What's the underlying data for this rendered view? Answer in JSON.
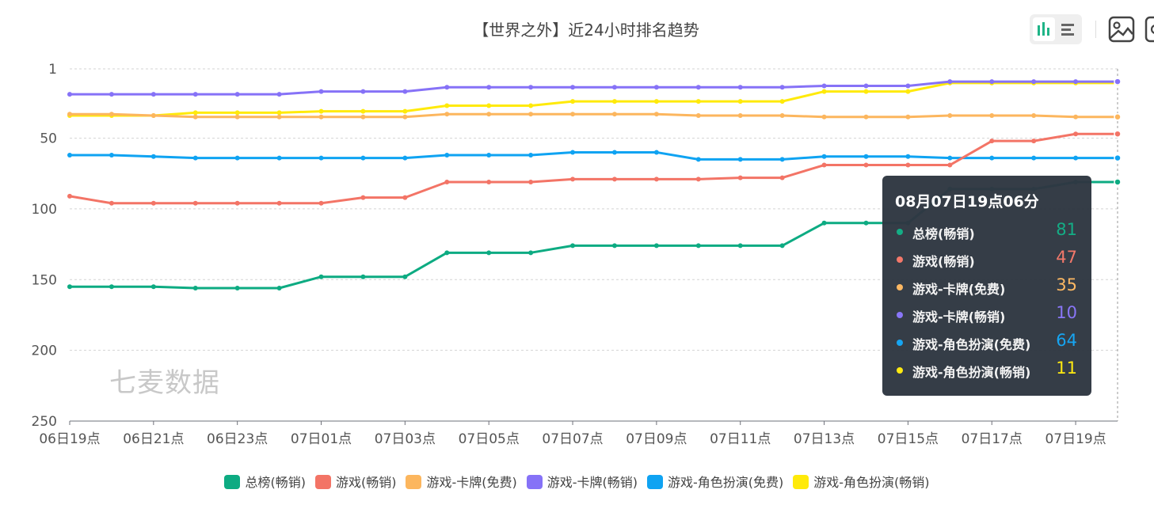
{
  "title": "【世界之外】近24小时排名趋势",
  "watermark": "七麦数据",
  "toolbar": {
    "buttons": [
      {
        "name": "bar-chart-icon",
        "active": true
      },
      {
        "name": "list-icon",
        "active": false
      },
      {
        "name": "image-icon",
        "active": false
      }
    ]
  },
  "colors": {
    "grid": "#d3d3d3",
    "axis": "#6e7079",
    "tooltip_bg": "#2f3742"
  },
  "chart_data": {
    "type": "line",
    "title": "【世界之外】近24小时排名趋势",
    "x_ticks": [
      "06日19点",
      "06日21点",
      "06日23点",
      "07日01点",
      "07日03点",
      "07日05点",
      "07日07点",
      "07日09点",
      "07日11点",
      "07日13点",
      "07日15点",
      "07日17点",
      "07日19点"
    ],
    "y_ticks": [
      "1",
      "50",
      "100",
      "150",
      "200",
      "250"
    ],
    "ylim": [
      1,
      250
    ],
    "y_inverted": true,
    "grid": true,
    "legend_position": "bottom",
    "series": [
      {
        "name": "总榜(畅销)",
        "color": "#0dab82",
        "values": [
          155,
          155,
          155,
          156,
          156,
          156,
          148,
          148,
          148,
          131,
          131,
          131,
          126,
          126,
          126,
          126,
          126,
          126,
          110,
          110,
          110,
          86,
          86,
          86,
          81,
          81
        ]
      },
      {
        "name": "游戏(畅销)",
        "color": "#f37466",
        "values": [
          91,
          96,
          96,
          96,
          96,
          96,
          96,
          92,
          92,
          81,
          81,
          81,
          79,
          79,
          79,
          79,
          78,
          78,
          69,
          69,
          69,
          69,
          52,
          52,
          47,
          47
        ]
      },
      {
        "name": "游戏-卡牌(免费)",
        "color": "#fcb65e",
        "values": [
          33,
          33,
          34,
          35,
          35,
          35,
          35,
          35,
          35,
          33,
          33,
          33,
          33,
          33,
          33,
          34,
          34,
          34,
          35,
          35,
          35,
          34,
          34,
          34,
          35,
          35
        ]
      },
      {
        "name": "游戏-卡牌(畅销)",
        "color": "#8672f7",
        "values": [
          19,
          19,
          19,
          19,
          19,
          19,
          17,
          17,
          17,
          14,
          14,
          14,
          14,
          14,
          14,
          14,
          14,
          14,
          13,
          13,
          13,
          10,
          10,
          10,
          10,
          10
        ]
      },
      {
        "name": "游戏-角色扮演(免费)",
        "color": "#0fa3f2",
        "values": [
          62,
          62,
          63,
          64,
          64,
          64,
          64,
          64,
          64,
          62,
          62,
          62,
          60,
          60,
          60,
          65,
          65,
          65,
          63,
          63,
          63,
          64,
          64,
          64,
          64,
          64
        ]
      },
      {
        "name": "游戏-角色扮演(畅销)",
        "color": "#ffea0a",
        "values": [
          34,
          34,
          34,
          32,
          32,
          32,
          31,
          31,
          31,
          27,
          27,
          27,
          24,
          24,
          24,
          24,
          24,
          24,
          17,
          17,
          17,
          11,
          11,
          11,
          11,
          11
        ]
      }
    ]
  },
  "tooltip": {
    "time": "08月07日19点06分",
    "rows": [
      {
        "name": "总榜(畅销)",
        "value": "81",
        "color": "#0dab82"
      },
      {
        "name": "游戏(畅销)",
        "value": "47",
        "color": "#f37466"
      },
      {
        "name": "游戏-卡牌(免费)",
        "value": "35",
        "color": "#fcb65e"
      },
      {
        "name": "游戏-卡牌(畅销)",
        "value": "10",
        "color": "#8672f7"
      },
      {
        "name": "游戏-角色扮演(免费)",
        "value": "64",
        "color": "#0fa3f2"
      },
      {
        "name": "游戏-角色扮演(畅销)",
        "value": "11",
        "color": "#ffea0a"
      }
    ]
  }
}
